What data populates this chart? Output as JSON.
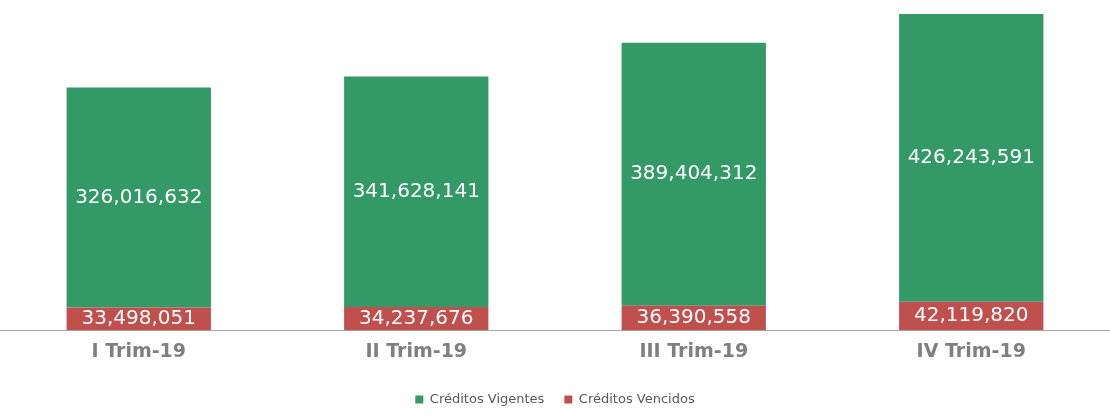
{
  "chart_data": {
    "type": "bar",
    "stacked": true,
    "legend": "bottom",
    "grid": false,
    "categories": [
      "I Trim-19",
      "II Trim-19",
      "III Trim-19",
      "IV Trim-19"
    ],
    "series": [
      {
        "name": "Créditos Vencidos",
        "color": "#c0504d",
        "values": [
          33498051,
          34237676,
          36390558,
          42119820
        ],
        "value_labels": [
          "33,498,051",
          "34,237,676",
          "36,390,558",
          "42,119,820"
        ]
      },
      {
        "name": "Créditos Vigentes",
        "color": "#339966",
        "values": [
          326016632,
          341628141,
          389404312,
          426243591
        ],
        "value_labels": [
          "326,016,632",
          "341,628,141",
          "389,404,312",
          "426,243,591"
        ]
      }
    ]
  }
}
